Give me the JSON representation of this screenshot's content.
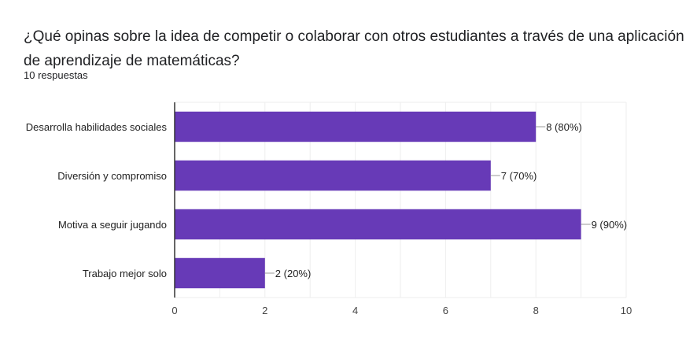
{
  "title": "¿Qué opinas sobre la idea de competir o colaborar con otros estudiantes a través de una aplicación de aprendizaje de matemáticas?",
  "subtitle": "10 respuestas",
  "chart_data": {
    "type": "bar",
    "orientation": "horizontal",
    "categories": [
      "Desarrolla habilidades sociales",
      "Diversión y compromiso",
      "Motiva a seguir jugando",
      "Trabajo mejor solo"
    ],
    "values": [
      8,
      7,
      9,
      2
    ],
    "data_labels": [
      "8 (80%)",
      "7 (70%)",
      "9 (90%)",
      "2 (20%)"
    ],
    "xlim": [
      0,
      10
    ],
    "xticks": [
      0,
      2,
      4,
      6,
      8,
      10
    ],
    "grid": true,
    "bar_color": "#673ab7",
    "grid_color": "#eeeeee",
    "axis_color": "#333333"
  }
}
